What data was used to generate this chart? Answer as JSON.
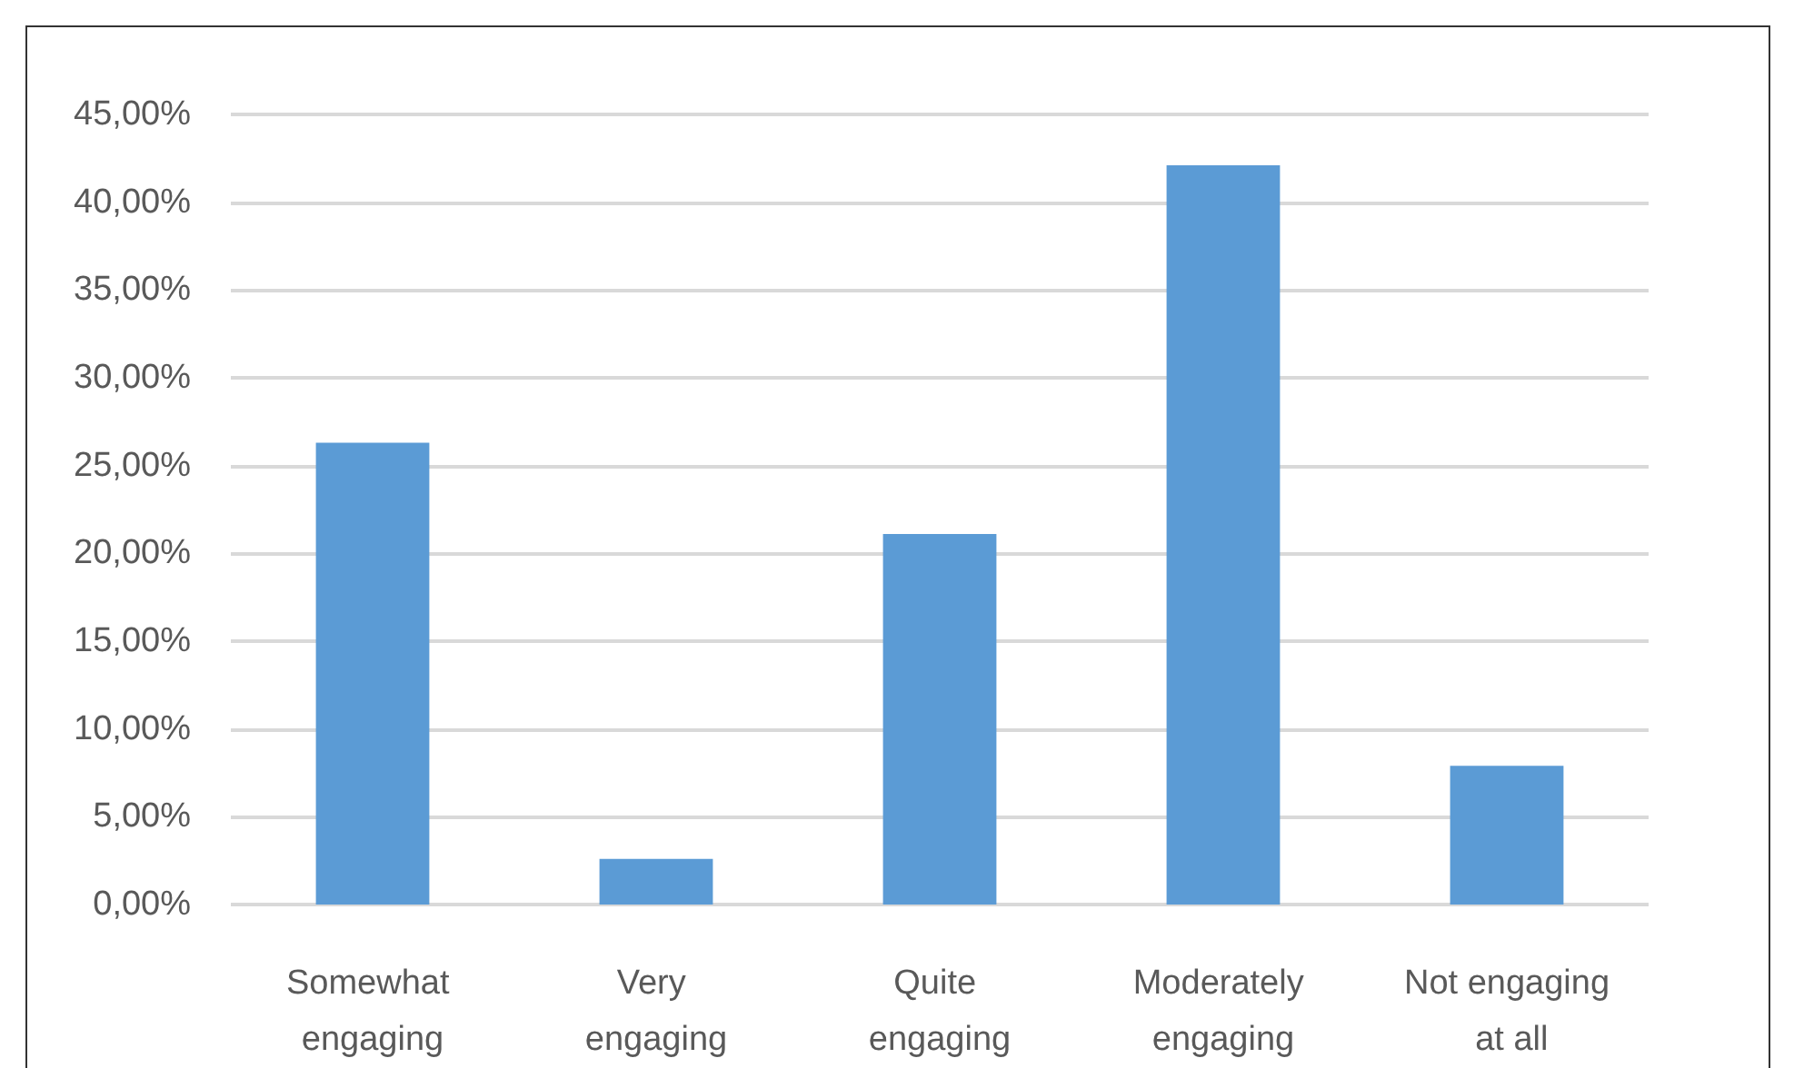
{
  "chart_data": {
    "type": "bar",
    "categories": [
      "Somewhat engaging",
      "Very engaging",
      "Quite engaging",
      "Moderately engaging",
      "Not engaging at all"
    ],
    "values": [
      26.3,
      2.6,
      21.1,
      42.1,
      7.9
    ],
    "color": "#5b9bd5",
    "ylim": [
      0,
      45
    ],
    "yticks": [
      {
        "value": 0,
        "label": "0,00%"
      },
      {
        "value": 5,
        "label": "5,00%"
      },
      {
        "value": 10,
        "label": "10,00%"
      },
      {
        "value": 15,
        "label": "15,00%"
      },
      {
        "value": 20,
        "label": "20,00%"
      },
      {
        "value": 25,
        "label": "25,00%"
      },
      {
        "value": 30,
        "label": "30,00%"
      },
      {
        "value": 35,
        "label": "35,00%"
      },
      {
        "value": 40,
        "label": "40,00%"
      },
      {
        "value": 45,
        "label": "45,00%"
      }
    ],
    "grid": true
  }
}
